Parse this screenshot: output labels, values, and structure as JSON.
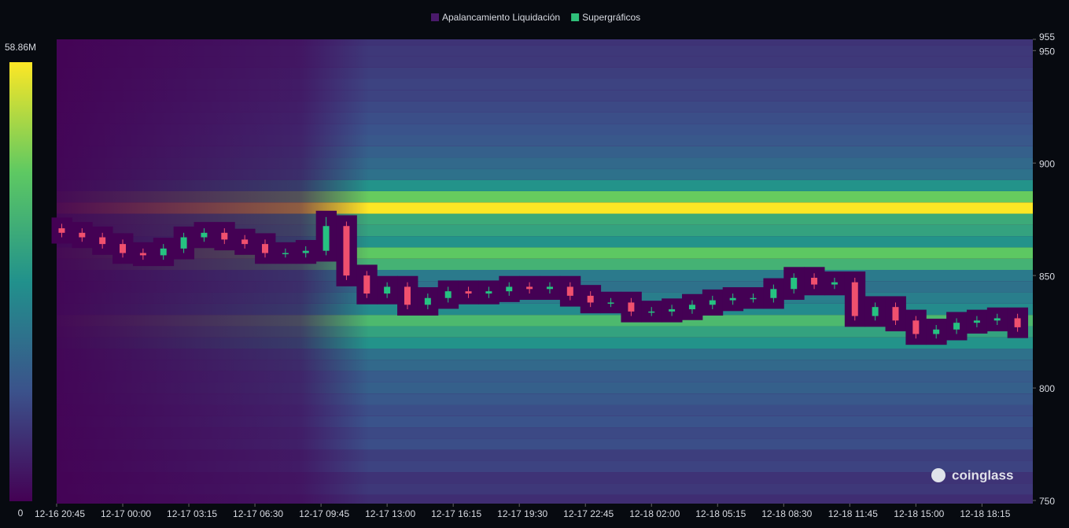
{
  "chart_data": {
    "type": "candlestick-heatmap",
    "legend": [
      {
        "name": "Apalancamiento Liquidación",
        "color": "#4a1a6b"
      },
      {
        "name": "Supergráficos",
        "color": "#2fc07a"
      }
    ],
    "color_scale": {
      "min": 0,
      "max": {
        "value": 58860000,
        "label": "58.86M"
      },
      "colors": [
        "#440154",
        "#3b528b",
        "#21918c",
        "#5ec962",
        "#fde725"
      ]
    },
    "ylim": [
      750,
      955
    ],
    "yticks": [
      750,
      800,
      850,
      900,
      950,
      955
    ],
    "xlim": [
      "12-16 20:45",
      "12-18 20:45"
    ],
    "xticks": [
      "12-16 20:45",
      "12-17 00:00",
      "12-17 03:15",
      "12-17 06:30",
      "12-17 09:45",
      "12-17 13:00",
      "12-17 16:15",
      "12-17 19:30",
      "12-17 22:45",
      "12-18 02:00",
      "12-18 05:15",
      "12-18 08:30",
      "12-18 11:45",
      "12-18 15:00",
      "12-18 18:15"
    ],
    "heatmap": {
      "prices": [
        750,
        755,
        760,
        765,
        770,
        775,
        780,
        785,
        790,
        795,
        800,
        805,
        810,
        815,
        820,
        825,
        830,
        835,
        840,
        845,
        850,
        855,
        860,
        865,
        870,
        875,
        880,
        885,
        890,
        895,
        900,
        905,
        910,
        915,
        920,
        925,
        930,
        935,
        940,
        945,
        950,
        955
      ],
      "values": [
        8000000,
        10000000,
        9000000,
        12000000,
        11000000,
        14000000,
        13000000,
        15000000,
        14000000,
        16000000,
        18000000,
        17000000,
        20000000,
        22000000,
        30000000,
        34000000,
        40000000,
        28000000,
        25000000,
        22000000,
        24000000,
        38000000,
        44000000,
        30000000,
        34000000,
        36000000,
        58860000,
        45000000,
        30000000,
        22000000,
        20000000,
        18000000,
        16000000,
        15000000,
        14000000,
        13000000,
        12000000,
        12000000,
        11000000,
        10000000,
        10000000,
        9000000
      ]
    },
    "candles": {
      "up_color": "#26c281",
      "down_color": "#f0506e",
      "x": [
        "12-16 21:00",
        "12-16 22:00",
        "12-16 23:00",
        "12-17 00:00",
        "12-17 01:00",
        "12-17 02:00",
        "12-17 03:00",
        "12-17 04:00",
        "12-17 05:00",
        "12-17 06:00",
        "12-17 07:00",
        "12-17 08:00",
        "12-17 09:00",
        "12-17 10:00",
        "12-17 11:00",
        "12-17 12:00",
        "12-17 13:00",
        "12-17 14:00",
        "12-17 15:00",
        "12-17 16:00",
        "12-17 17:00",
        "12-17 18:00",
        "12-17 19:00",
        "12-17 20:00",
        "12-17 21:00",
        "12-17 22:00",
        "12-17 23:00",
        "12-18 00:00",
        "12-18 01:00",
        "12-18 02:00",
        "12-18 03:00",
        "12-18 04:00",
        "12-18 05:00",
        "12-18 06:00",
        "12-18 07:00",
        "12-18 08:00",
        "12-18 09:00",
        "12-18 10:00",
        "12-18 11:00",
        "12-18 12:00",
        "12-18 13:00",
        "12-18 14:00",
        "12-18 15:00",
        "12-18 16:00",
        "12-18 17:00",
        "12-18 18:00",
        "12-18 19:00",
        "12-18 20:00"
      ],
      "open": [
        871,
        869,
        867,
        864,
        860,
        859,
        862,
        867,
        869,
        866,
        864,
        860,
        860,
        861,
        872,
        850,
        842,
        845,
        837,
        840,
        843,
        842,
        843,
        845,
        844,
        845,
        841,
        838,
        838,
        834,
        834,
        835,
        837,
        839,
        840,
        840,
        844,
        849,
        846,
        847,
        832,
        836,
        830,
        824,
        826,
        829,
        830,
        831
      ],
      "high": [
        873,
        871,
        869,
        866,
        862,
        864,
        869,
        871,
        871,
        868,
        866,
        862,
        863,
        876,
        874,
        852,
        847,
        847,
        842,
        845,
        845,
        845,
        847,
        847,
        847,
        847,
        843,
        840,
        840,
        836,
        837,
        839,
        841,
        842,
        842,
        846,
        851,
        851,
        849,
        849,
        838,
        838,
        832,
        828,
        831,
        832,
        833,
        833
      ],
      "low": [
        867,
        865,
        862,
        858,
        857,
        857,
        860,
        865,
        864,
        862,
        858,
        858,
        858,
        859,
        848,
        840,
        840,
        835,
        835,
        838,
        840,
        840,
        841,
        842,
        842,
        839,
        836,
        836,
        832,
        832,
        832,
        833,
        835,
        837,
        838,
        838,
        842,
        844,
        844,
        830,
        830,
        828,
        822,
        822,
        824,
        827,
        828,
        825
      ],
      "close": [
        869,
        867,
        864,
        860,
        859,
        862,
        867,
        869,
        866,
        864,
        860,
        860,
        861,
        872,
        850,
        842,
        845,
        837,
        840,
        843,
        842,
        843,
        845,
        844,
        845,
        841,
        838,
        838,
        834,
        834,
        835,
        837,
        839,
        840,
        840,
        844,
        849,
        846,
        847,
        832,
        836,
        830,
        824,
        826,
        829,
        830,
        831,
        827
      ]
    },
    "watermark": "coinglass"
  }
}
